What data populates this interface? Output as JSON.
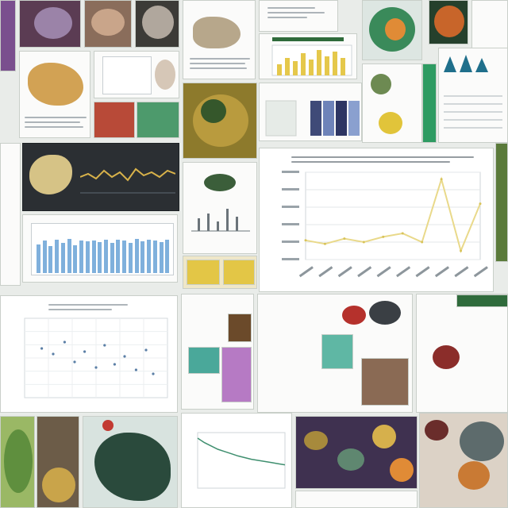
{
  "collage": {
    "description_tag": ""
  },
  "colors": {
    "background": "#e9ece9",
    "accent_green": "#2f6b3b",
    "accent_blue": "#7fb0dc",
    "accent_yellow": "#e5c84b",
    "dark_panel": "#2b2f33"
  },
  "big_line_chart": {
    "type": "line",
    "x_count": 10,
    "values": [
      0.22,
      0.18,
      0.24,
      0.2,
      0.26,
      0.3,
      0.2,
      0.92,
      0.1,
      0.64
    ],
    "ylim": [
      0,
      1
    ]
  },
  "bar_panel": {
    "type": "bar",
    "values": [
      0.62,
      0.7,
      0.58,
      0.72,
      0.66,
      0.74,
      0.6,
      0.7,
      0.69,
      0.71,
      0.68,
      0.73,
      0.65,
      0.72,
      0.7,
      0.66,
      0.75,
      0.69,
      0.72,
      0.7,
      0.67,
      0.73
    ],
    "ylim": [
      0,
      1
    ]
  },
  "scatter_panel": {
    "type": "scatter",
    "points": [
      [
        0.12,
        0.62
      ],
      [
        0.2,
        0.55
      ],
      [
        0.28,
        0.7
      ],
      [
        0.35,
        0.45
      ],
      [
        0.42,
        0.58
      ],
      [
        0.5,
        0.38
      ],
      [
        0.56,
        0.66
      ],
      [
        0.63,
        0.42
      ],
      [
        0.7,
        0.52
      ],
      [
        0.78,
        0.35
      ],
      [
        0.85,
        0.6
      ],
      [
        0.9,
        0.3
      ]
    ]
  },
  "decay_panel": {
    "type": "line",
    "values": [
      0.9,
      0.82,
      0.76,
      0.7,
      0.66,
      0.62,
      0.58,
      0.55,
      0.52,
      0.5,
      0.48,
      0.46,
      0.44,
      0.42
    ]
  }
}
